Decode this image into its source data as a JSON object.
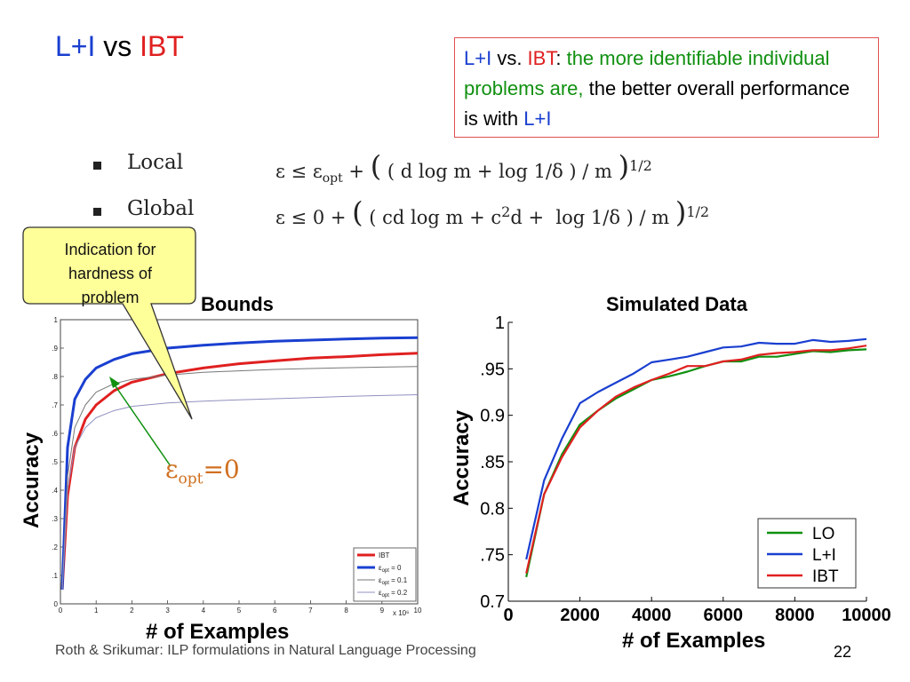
{
  "slide": {
    "title_part1": "L+I",
    "title_mid": " vs ",
    "title_part2": "IBT",
    "colors": {
      "blue": "#1a3fd0",
      "red": "#e02020",
      "green": "#109010",
      "orange": "#d07020"
    }
  },
  "callout": {
    "a": "L+I",
    "b": " vs. ",
    "c": "IBT",
    "d": ": ",
    "e": "the more identifiable individual problems are,",
    "f": " the better overall performance is with ",
    "g": "L+I"
  },
  "bullets": [
    {
      "label": "Local",
      "formula_start": "ε ≤ ε",
      "sub": "opt",
      "formula_mid": " + ",
      "open": "(",
      "body": " ( d log m + log 1/δ ) / m ",
      "close": ")",
      "exp": "1/2"
    },
    {
      "label": "Global",
      "formula_start": "ε ≤ 0 + ",
      "open": "(",
      "body_a": " ( cd log m + c",
      "sq": "2",
      "body_b": "d +  log 1/δ ) / m ",
      "close": ")",
      "exp": "1/2"
    }
  ],
  "note": {
    "line1": "Indication for",
    "line2": "hardness of",
    "line3": "problem"
  },
  "left_panel": {
    "title": "Bounds",
    "ylabel": "Accuracy",
    "xlabel": "# of Examples",
    "annotation_main": "ε",
    "annotation_sub": "opt",
    "annotation_tail": "=0"
  },
  "right_panel": {
    "title": "Simulated Data",
    "ylabel": "Accuracy",
    "xlabel": "# of Examples"
  },
  "footer": {
    "text": "Roth & Srikumar: ILP formulations in Natural Language Processing",
    "page": "22"
  },
  "chart_data": [
    {
      "type": "line",
      "title": "Bounds",
      "xlabel": "# of Examples",
      "ylabel": "Accuracy",
      "xlim": [
        0,
        10
      ],
      "ylim": [
        0,
        1
      ],
      "x_multiplier_label": "x 10⁶",
      "xticks": [
        "0",
        "1",
        "2",
        "3",
        "4",
        "5",
        "6",
        "7",
        "8",
        "9",
        "10"
      ],
      "yticks": [
        ".1",
        ".2",
        ".3",
        ".4",
        ".5",
        ".6",
        ".7",
        ".8",
        ".9",
        "1"
      ],
      "legend_position": "bottom-right",
      "x": [
        0.05,
        0.2,
        0.4,
        0.7,
        1,
        1.5,
        2,
        3,
        4,
        5,
        6,
        7,
        8,
        9,
        10
      ],
      "series": [
        {
          "name": "IBT",
          "color": "#e02020",
          "width": 3,
          "values": [
            0.05,
            0.38,
            0.55,
            0.65,
            0.7,
            0.75,
            0.78,
            0.81,
            0.83,
            0.845,
            0.855,
            0.865,
            0.87,
            0.877,
            0.882
          ]
        },
        {
          "name": "ε_opt = 0",
          "name_main": "ε",
          "name_sub": "opt",
          "name_tail": " =  0",
          "color": "#1a3fd0",
          "width": 3,
          "values": [
            0.05,
            0.55,
            0.72,
            0.79,
            0.83,
            0.86,
            0.88,
            0.9,
            0.91,
            0.918,
            0.924,
            0.928,
            0.932,
            0.935,
            0.937
          ]
        },
        {
          "name": "ε_opt = 0.1",
          "name_main": "ε",
          "name_sub": "opt",
          "name_tail": " = 0.1",
          "color": "#777777",
          "width": 1,
          "values": [
            0.05,
            0.45,
            0.62,
            0.7,
            0.745,
            0.775,
            0.79,
            0.805,
            0.815,
            0.82,
            0.825,
            0.828,
            0.831,
            0.833,
            0.835
          ]
        },
        {
          "name": "ε_opt = 0.2",
          "name_main": "ε",
          "name_sub": "opt",
          "name_tail": " = 0.2",
          "color": "#9090c0",
          "width": 1,
          "values": [
            0.05,
            0.4,
            0.55,
            0.62,
            0.655,
            0.68,
            0.695,
            0.707,
            0.713,
            0.718,
            0.722,
            0.726,
            0.73,
            0.733,
            0.736
          ]
        }
      ]
    },
    {
      "type": "line",
      "title": "Simulated Data",
      "xlabel": "# of Examples",
      "ylabel": "Accuracy",
      "xlim": [
        0,
        10000
      ],
      "ylim": [
        0.7,
        1
      ],
      "xticks": [
        "0",
        "2000",
        "4000",
        "6000",
        "8000",
        "10000"
      ],
      "yticks": [
        "0.7",
        ".75",
        "0.8",
        ".85",
        "0.9",
        ".95",
        "1"
      ],
      "legend_position": "bottom-right",
      "x": [
        500,
        1000,
        1500,
        2000,
        2500,
        3000,
        3500,
        4000,
        4500,
        5000,
        5500,
        6000,
        6500,
        7000,
        7500,
        8000,
        8500,
        9000,
        9500,
        10000
      ],
      "series": [
        {
          "name": "LO",
          "color": "#109010",
          "values": [
            0.726,
            0.815,
            0.858,
            0.89,
            0.905,
            0.918,
            0.928,
            0.938,
            0.942,
            0.947,
            0.953,
            0.958,
            0.958,
            0.963,
            0.963,
            0.966,
            0.969,
            0.968,
            0.97,
            0.971
          ]
        },
        {
          "name": "L+I",
          "color": "#1a3fd0",
          "values": [
            0.745,
            0.83,
            0.875,
            0.913,
            0.925,
            0.935,
            0.945,
            0.957,
            0.96,
            0.963,
            0.968,
            0.973,
            0.974,
            0.978,
            0.977,
            0.977,
            0.981,
            0.979,
            0.98,
            0.982
          ]
        },
        {
          "name": "IBT",
          "color": "#e02020",
          "values": [
            0.73,
            0.815,
            0.855,
            0.887,
            0.905,
            0.92,
            0.93,
            0.938,
            0.945,
            0.953,
            0.953,
            0.958,
            0.96,
            0.965,
            0.967,
            0.968,
            0.97,
            0.97,
            0.972,
            0.975
          ]
        }
      ]
    }
  ]
}
